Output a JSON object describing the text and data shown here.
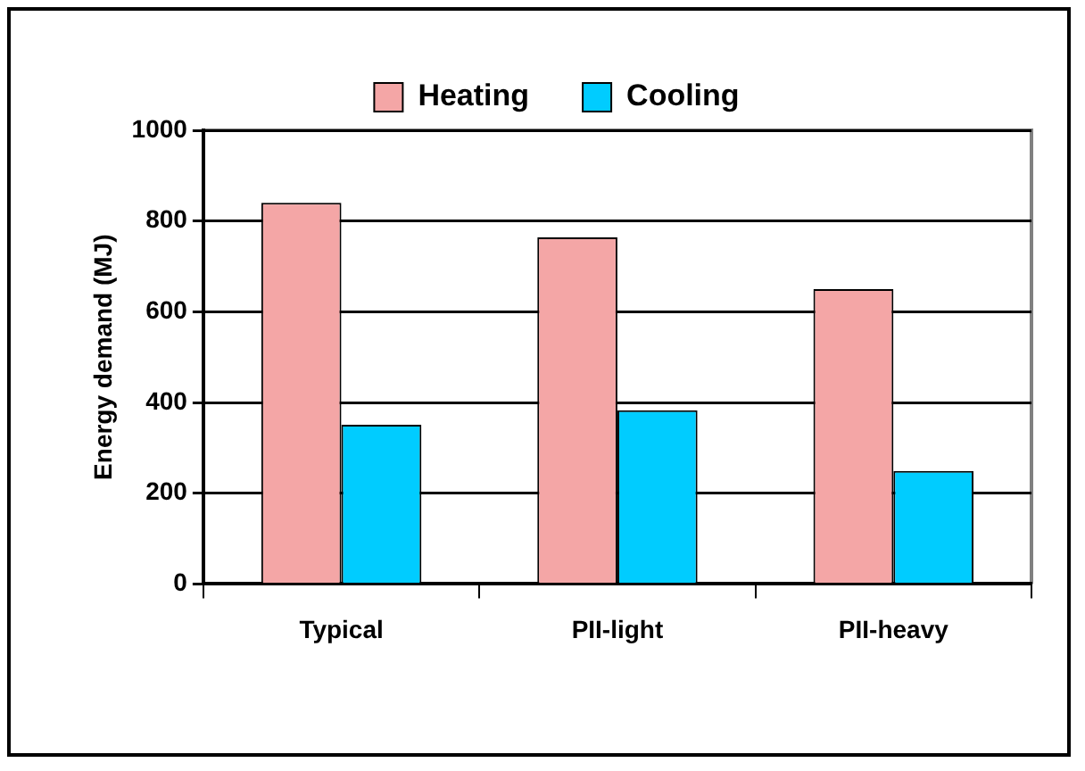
{
  "chart_data": {
    "type": "bar",
    "ylabel": "Energy demand (MJ)",
    "categories": [
      "Typical",
      "PII-light",
      "PII-heavy"
    ],
    "series": [
      {
        "name": "Heating",
        "color": "#f4a6a6",
        "values": [
          840,
          764,
          650
        ]
      },
      {
        "name": "Cooling",
        "color": "#00ccff",
        "values": [
          351,
          383,
          249
        ]
      }
    ],
    "ylim": [
      0,
      1000
    ],
    "yticks": [
      0,
      200,
      400,
      600,
      800,
      1000
    ],
    "grid": "y",
    "legend": "top"
  }
}
